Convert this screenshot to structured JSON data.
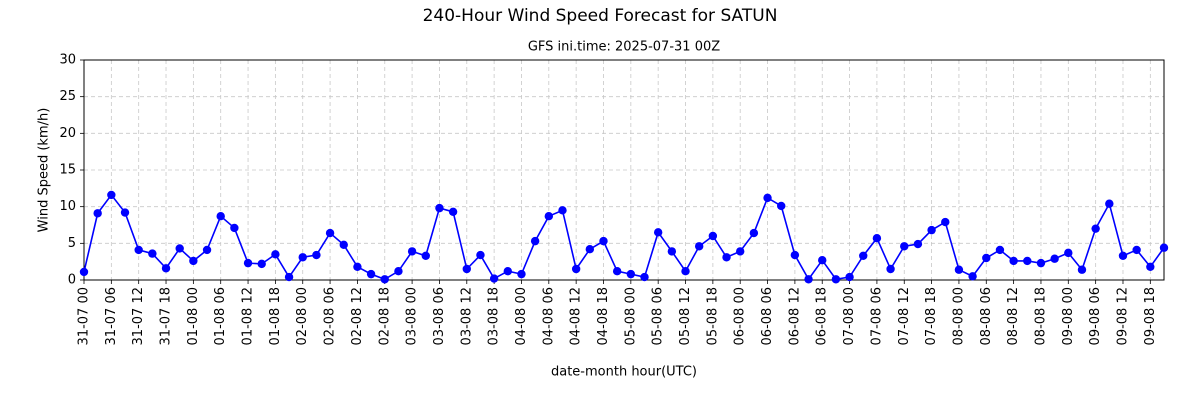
{
  "chart_data": {
    "type": "line",
    "title": "240-Hour Wind Speed Forecast for SATUN",
    "subtitle": "GFS ini.time: 2025-07-31 00Z",
    "x_label": "date-month hour(UTC)",
    "y_label": "Wind Speed (km/h)",
    "categories": [
      "31-07 00",
      null,
      "31-07 06",
      null,
      "31-07 12",
      null,
      "31-07 18",
      null,
      "01-08 00",
      null,
      "01-08 06",
      null,
      "01-08 12",
      null,
      "01-08 18",
      null,
      "02-08 00",
      null,
      "02-08 06",
      null,
      "02-08 12",
      null,
      "02-08 18",
      null,
      "03-08 00",
      null,
      "03-08 06",
      null,
      "03-08 12",
      null,
      "03-08 18",
      null,
      "04-08 00",
      null,
      "04-08 06",
      null,
      "04-08 12",
      null,
      "04-08 18",
      null,
      "05-08 00",
      null,
      "05-08 06",
      null,
      "05-08 12",
      null,
      "05-08 18",
      null,
      "06-08 00",
      null,
      "06-08 06",
      null,
      "06-08 12",
      null,
      "06-08 18",
      null,
      "07-08 00",
      null,
      "07-08 06",
      null,
      "07-08 12",
      null,
      "07-08 18",
      null,
      "08-08 00",
      null,
      "08-08 06",
      null,
      "08-08 12",
      null,
      "08-08 18",
      null,
      "09-08 00",
      null,
      "09-08 06",
      null,
      "09-08 12",
      null,
      "09-08 18",
      null
    ],
    "series": [
      {
        "name": "Wind Speed",
        "color": "#0000ff",
        "values": [
          1.1,
          9.1,
          11.6,
          9.2,
          4.1,
          3.6,
          1.6,
          4.3,
          2.6,
          4.1,
          8.7,
          7.1,
          2.3,
          2.2,
          3.5,
          0.4,
          3.1,
          3.4,
          6.4,
          4.8,
          1.8,
          0.8,
          0.1,
          1.2,
          3.9,
          3.3,
          9.8,
          9.3,
          1.5,
          3.4,
          0.2,
          1.2,
          0.8,
          5.3,
          8.7,
          9.5,
          1.5,
          4.2,
          5.3,
          1.2,
          0.8,
          0.4,
          6.5,
          3.9,
          1.2,
          4.6,
          6.0,
          3.1,
          3.9,
          6.4,
          11.2,
          10.1,
          3.4,
          0.1,
          2.7,
          0.1,
          0.4,
          3.3,
          5.7,
          1.5,
          4.6,
          4.9,
          6.8,
          7.9,
          1.4,
          0.5,
          3.0,
          4.1,
          2.6,
          2.6,
          2.3,
          2.9,
          3.7,
          1.4,
          7.0,
          10.4,
          3.3,
          4.1,
          1.8,
          4.4
        ]
      }
    ],
    "ylim": [
      0,
      30
    ],
    "yticks": [
      0,
      5,
      10,
      15,
      20,
      25,
      30
    ],
    "grid": true
  }
}
